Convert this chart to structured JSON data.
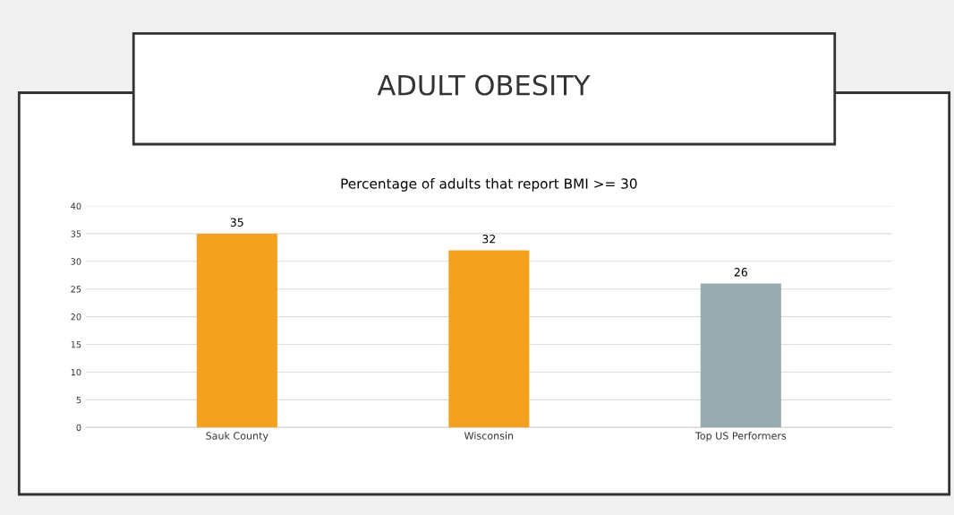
{
  "chart_data": {
    "type": "bar",
    "title": "ADULT OBESITY",
    "subtitle": "Percentage of adults that report BMI >= 30",
    "categories": [
      "Sauk County",
      "Wisconsin",
      "Top US Performers"
    ],
    "values": [
      35,
      32,
      26
    ],
    "colors": [
      "#f4a11d",
      "#f4a11d",
      "#9aabb0"
    ],
    "ylim": [
      0,
      40
    ],
    "yticks": [
      0,
      5,
      10,
      15,
      20,
      25,
      30,
      35,
      40
    ],
    "grid": "y",
    "data_labels": true
  }
}
